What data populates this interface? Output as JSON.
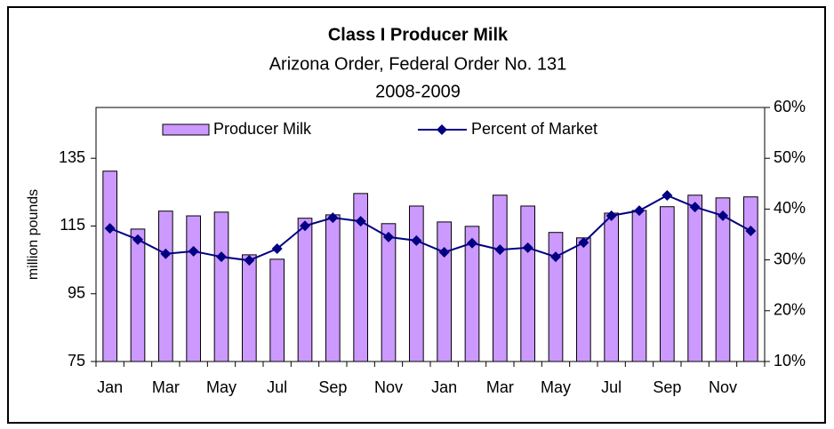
{
  "chart_data": {
    "type": "bar_line",
    "title": "Class I Producer Milk",
    "subtitle": [
      "Arizona Order, Federal Order No. 131",
      "2008-2009"
    ],
    "ylabel": "million pounds",
    "categories": [
      "Jan",
      null,
      "Mar",
      null,
      "May",
      null,
      "Jul",
      null,
      "Sep",
      null,
      "Nov",
      null,
      "Jan",
      null,
      "Mar",
      null,
      "May",
      null,
      "Jul",
      null,
      "Sep",
      null,
      "Nov",
      null
    ],
    "series": [
      {
        "name": "Producer Milk",
        "color": "#cc99ff",
        "type": "bar",
        "axis": "y",
        "values": [
          131.2,
          114.1,
          119.4,
          118.0,
          119.1,
          106.5,
          105.2,
          117.3,
          118.3,
          124.6,
          115.7,
          120.9,
          116.2,
          114.9,
          124.1,
          120.9,
          113.1,
          111.5,
          118.8,
          119.6,
          120.7,
          124.1,
          123.3,
          123.6
        ]
      },
      {
        "name": "Percent of Market",
        "color": "#000080",
        "type": "line",
        "axis": "y2",
        "values": [
          36.2,
          34.0,
          31.2,
          31.7,
          30.6,
          29.9,
          32.2,
          36.7,
          38.3,
          37.6,
          34.5,
          33.8,
          31.5,
          33.3,
          32.0,
          32.4,
          30.6,
          33.4,
          38.7,
          39.7,
          42.7,
          40.4,
          38.7,
          35.7
        ]
      }
    ],
    "ylim": [
      75,
      150
    ],
    "yticks": [
      75,
      95,
      115,
      135
    ],
    "y2lim": [
      10,
      60
    ],
    "y2ticks": [
      {
        "value": 10,
        "label": "10%"
      },
      {
        "value": 20,
        "label": "20%"
      },
      {
        "value": 30,
        "label": "30%"
      },
      {
        "value": 40,
        "label": "40%"
      },
      {
        "value": 50,
        "label": "50%"
      },
      {
        "value": 60,
        "label": "60%"
      }
    ],
    "grid": false,
    "legend": "top"
  }
}
